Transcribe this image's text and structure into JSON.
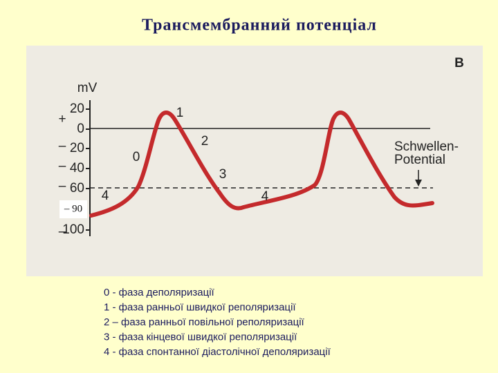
{
  "title": "Трансмембранний потенціал",
  "figure": {
    "panel_label": "B",
    "axis_label": "mV",
    "ticks": [
      {
        "sign": "+",
        "label": "20"
      },
      {
        "label": "0"
      },
      {
        "sign": "–",
        "label": "20"
      },
      {
        "sign": "–",
        "label": "40"
      },
      {
        "sign": "–",
        "label": "60"
      },
      {
        "sign": "–",
        "label": "100"
      }
    ],
    "overlay_label": "– 90",
    "phase_labels": [
      "0",
      "1",
      "2",
      "3",
      "4"
    ],
    "big_phase_label": "4",
    "threshold_label": [
      "Schwellen-",
      "Potential"
    ]
  },
  "legend": [
    "0 - фаза деполяризації",
    "1 - фаза ранньої швидкої реполяризації",
    "2 – фаза ранньої повільної реполяризації",
    "3 - фаза кінцевої швидкої реполяризації",
    "4 - фаза спонтанної діастолічної деполяризації"
  ]
}
